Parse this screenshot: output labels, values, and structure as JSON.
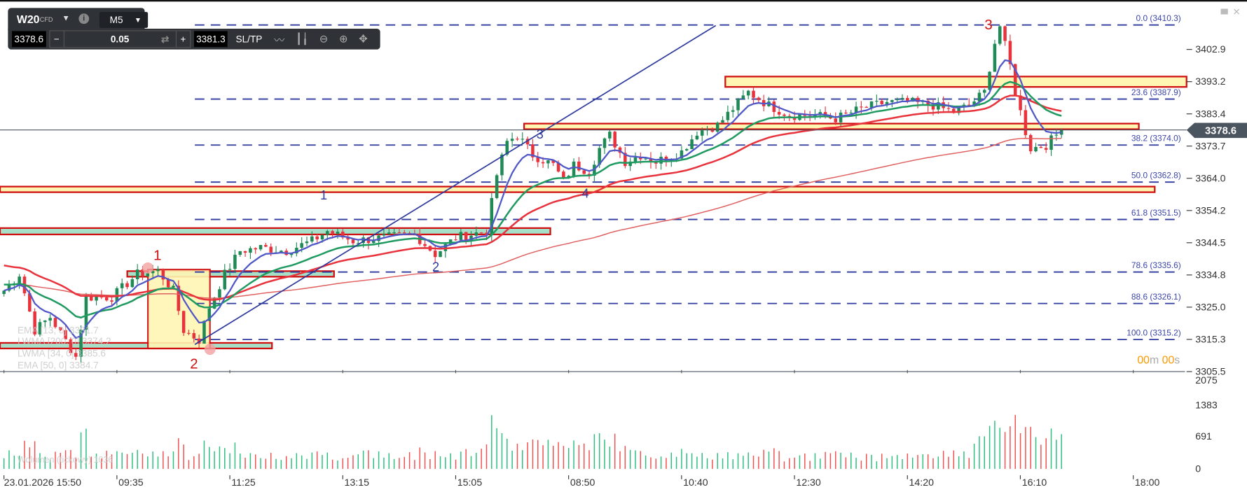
{
  "toolbar": {
    "symbol": "W20",
    "symbol_type": "CFD",
    "timeframe": "M5",
    "bid": "3378.6",
    "ask": "3381.3",
    "volume": "0.05",
    "minus": "−",
    "plus": "+",
    "sltp": "SL/TP",
    "info_icon": "info-icon",
    "icons": [
      "line-chart-icon",
      "candlestick-icon",
      "zoom-out-icon",
      "zoom-in-icon",
      "move-icon"
    ]
  },
  "price_axis": [
    "3402.9",
    "3393.2",
    "3383.4",
    "3373.7",
    "3364.0",
    "3354.2",
    "3344.5",
    "3334.8",
    "3325.0",
    "3315.3",
    "3305.5"
  ],
  "current_price": "3378.6",
  "volume_axis": [
    "2075",
    "1383",
    "691",
    "0"
  ],
  "time_axis": [
    "23.01.2026 15:50",
    "09:35",
    "11:25",
    "13:15",
    "15:05",
    "08:50",
    "10:40",
    "12:30",
    "14:20",
    "16:10",
    "18:00"
  ],
  "countdown": {
    "min": "00",
    "m": "m ",
    "sec": "00",
    "s": "s"
  },
  "fib_levels": [
    {
      "label": "0.0 (3410.3)",
      "price": 3410.3
    },
    {
      "label": "23.6 (3387.9)",
      "price": 3387.9
    },
    {
      "label": "38.2 (3374.0)",
      "price": 3374.0
    },
    {
      "label": "50.0 (3362.8)",
      "price": 3362.8
    },
    {
      "label": "61.8 (3351.5)",
      "price": 3351.5
    },
    {
      "label": "78.6 (3335.6)",
      "price": 3335.6
    },
    {
      "label": "88.6 (3326.1)",
      "price": 3326.1
    },
    {
      "label": "100.0 (3315.2)",
      "price": 3315.2
    }
  ],
  "indicators": [
    "EMA [13, 0] 3381.7",
    "LWMA [200, 0] 3374.2",
    "LWMA [34, 0] 3385.6",
    "EMA [50, 0] 3384.7"
  ],
  "volume_legend": "Wolumen (tickowy) 1036",
  "wave_labels_red": [
    "1",
    "2",
    "3"
  ],
  "wave_labels_blue": [
    "1",
    "2",
    "3",
    "4"
  ],
  "colors": {
    "up": "#1f8a55",
    "down": "#e8323c",
    "fib": "#2e3a9e",
    "ema13": "#5058c8",
    "lwma34": "#1f9a60",
    "ema50": "#e8323c",
    "lwma200": "#e06060",
    "zone_yellow": "#fff6b4",
    "zone_green": "#a6e0c9",
    "countdown": "#ff9800"
  },
  "chart_data": {
    "type": "candlestick",
    "symbol": "W20",
    "timeframe": "M5",
    "ylim": [
      3305.5,
      3412
    ],
    "path": [
      [
        0,
        3330
      ],
      [
        3,
        3335
      ],
      [
        6,
        3318
      ],
      [
        9,
        3322
      ],
      [
        14,
        3310
      ],
      [
        16,
        3328
      ],
      [
        21,
        3328
      ],
      [
        26,
        3335
      ],
      [
        30,
        3336
      ],
      [
        33,
        3330
      ],
      [
        35,
        3318
      ],
      [
        38,
        3315
      ],
      [
        40,
        3325
      ],
      [
        43,
        3335
      ],
      [
        46,
        3342
      ],
      [
        50,
        3343
      ],
      [
        55,
        3342
      ],
      [
        60,
        3345
      ],
      [
        63,
        3348
      ],
      [
        68,
        3345
      ],
      [
        74,
        3346
      ],
      [
        80,
        3347
      ],
      [
        84,
        3341
      ],
      [
        88,
        3346
      ],
      [
        94,
        3348
      ],
      [
        96,
        3365
      ],
      [
        98,
        3375
      ],
      [
        100,
        3377
      ],
      [
        103,
        3371
      ],
      [
        107,
        3368
      ],
      [
        109,
        3363
      ],
      [
        111,
        3368
      ],
      [
        114,
        3366
      ],
      [
        116,
        3373
      ],
      [
        118,
        3377
      ],
      [
        121,
        3369
      ],
      [
        124,
        3371
      ],
      [
        127,
        3369
      ],
      [
        132,
        3372
      ],
      [
        135,
        3378
      ],
      [
        139,
        3380
      ],
      [
        142,
        3385
      ],
      [
        145,
        3390
      ],
      [
        149,
        3386
      ],
      [
        153,
        3383
      ],
      [
        158,
        3383
      ],
      [
        162,
        3382
      ],
      [
        167,
        3385
      ],
      [
        172,
        3387
      ],
      [
        176,
        3387
      ],
      [
        181,
        3386
      ],
      [
        185,
        3384
      ],
      [
        188,
        3386
      ],
      [
        191,
        3390
      ],
      [
        193,
        3405
      ],
      [
        194,
        3410
      ],
      [
        196,
        3398
      ],
      [
        197,
        3390
      ],
      [
        199,
        3378
      ],
      [
        200,
        3373
      ],
      [
        203,
        3374
      ],
      [
        206,
        3378.6
      ]
    ]
  }
}
